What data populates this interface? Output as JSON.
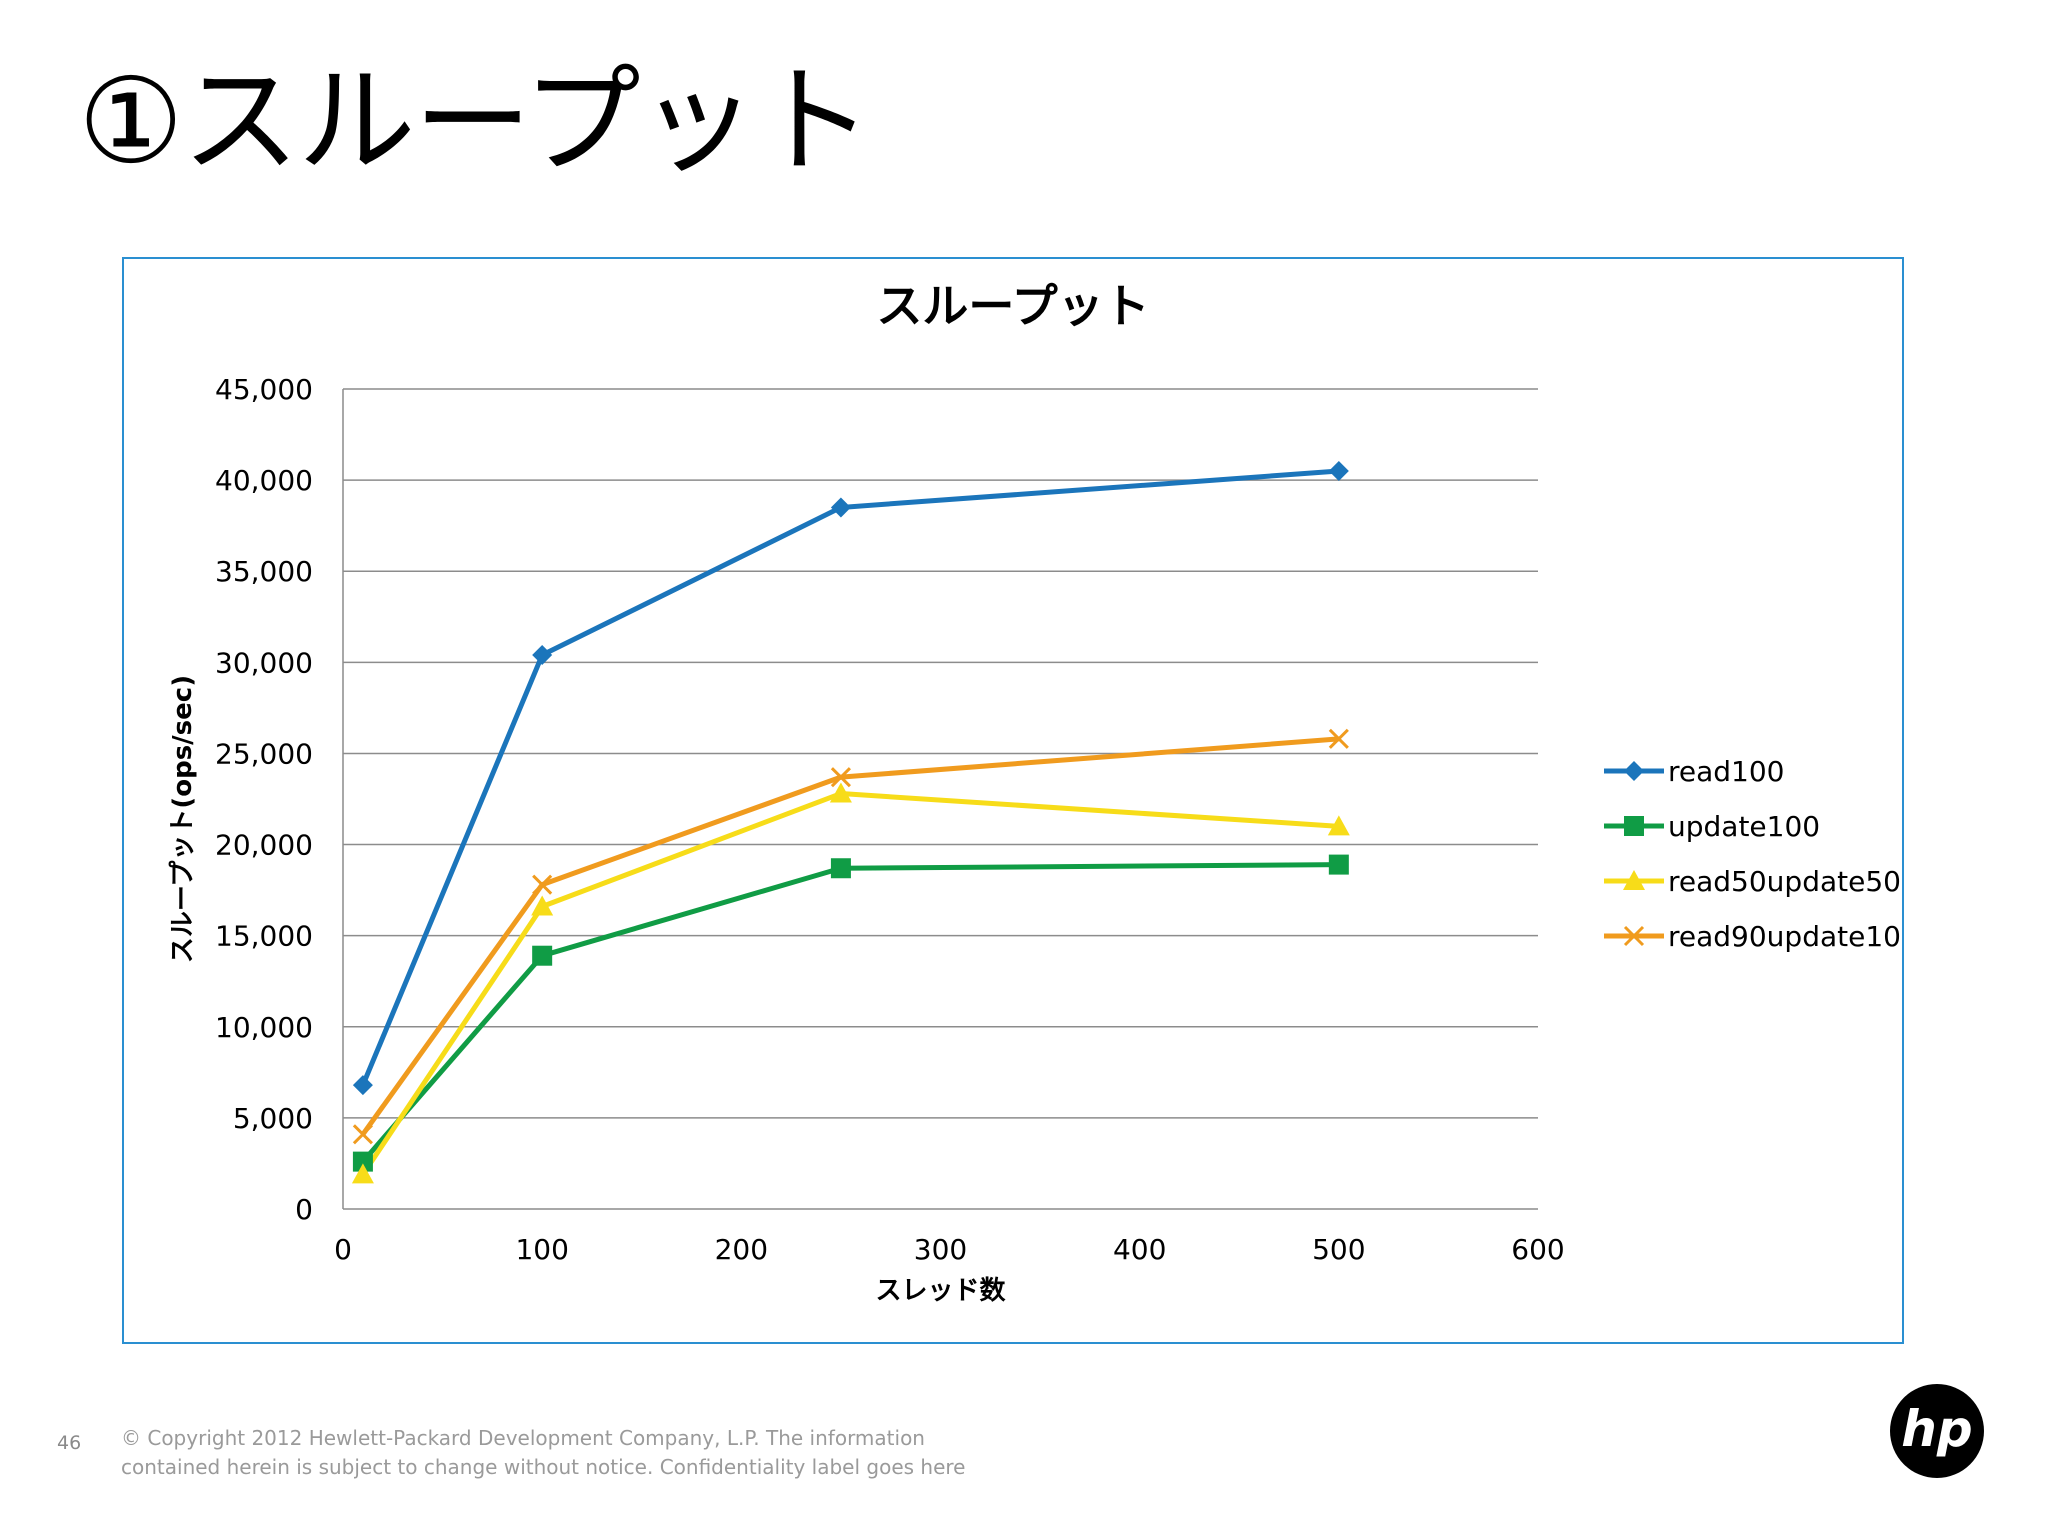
{
  "slide": {
    "title": "①スループット",
    "page_number": "46",
    "copyright": "© Copyright 2012 Hewlett-Packard Development Company, L.P.  The information contained herein is subject to change without notice. Confidentiality label goes here",
    "logo_icon": "hp-logo-icon",
    "logo_text": "hp"
  },
  "chart_data": {
    "type": "line",
    "title": "スループット",
    "xlabel": "スレッド数",
    "ylabel": "スループット(ops/sec)",
    "xlim": [
      0,
      600
    ],
    "ylim": [
      0,
      45000
    ],
    "x_ticks": [
      0,
      100,
      200,
      300,
      400,
      500,
      600
    ],
    "y_ticks": [
      0,
      5000,
      10000,
      15000,
      20000,
      25000,
      30000,
      35000,
      40000,
      45000
    ],
    "x_tick_labels": [
      "0",
      "100",
      "200",
      "300",
      "400",
      "500",
      "600"
    ],
    "y_tick_labels": [
      "0",
      "5,000",
      "10,000",
      "15,000",
      "20,000",
      "25,000",
      "30,000",
      "35,000",
      "40,000",
      "45,000"
    ],
    "grid": "horizontal",
    "legend_position": "right",
    "x": [
      10,
      100,
      250,
      500
    ],
    "series": [
      {
        "name": "read100",
        "values": [
          6800,
          30400,
          38500,
          40500
        ],
        "color": "#1b75bb",
        "marker": "diamond"
      },
      {
        "name": "update100",
        "values": [
          2600,
          13900,
          18700,
          18900
        ],
        "color": "#109c45",
        "marker": "square"
      },
      {
        "name": "read50update50",
        "values": [
          1900,
          16600,
          22800,
          21000
        ],
        "color": "#f7dc19",
        "marker": "triangle"
      },
      {
        "name": "read90update10",
        "values": [
          4100,
          17800,
          23700,
          25800
        ],
        "color": "#f09b1e",
        "marker": "x"
      }
    ]
  }
}
